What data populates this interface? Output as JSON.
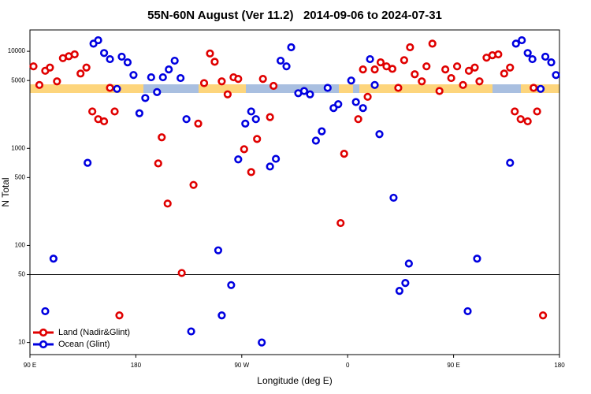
{
  "chart_data": {
    "type": "scatter",
    "title": "55N-60N August (Ver 11.2)   2014-09-06 to 2024-07-31",
    "xlabel": "Longitude (deg E)",
    "ylabel": "N Total",
    "xlim": [
      90,
      540
    ],
    "xticks": [
      {
        "value": 90,
        "label": "90 E"
      },
      {
        "value": 180,
        "label": "180"
      },
      {
        "value": 270,
        "label": "90 W"
      },
      {
        "value": 360,
        "label": "0"
      },
      {
        "value": 450,
        "label": "90 E"
      },
      {
        "value": 540,
        "label": "180"
      }
    ],
    "ylim": [
      7.5,
      16600
    ],
    "yscale": "log",
    "yticks": [
      10,
      50,
      100,
      500,
      1000,
      5000,
      10000
    ],
    "hline": 50,
    "legend": "lower left",
    "series": [
      {
        "name": "Land (Nadir&Glint)",
        "color": "#e00000",
        "x": [
          93,
          98,
          103,
          107,
          113,
          118,
          123,
          128,
          133,
          138,
          143,
          148,
          153,
          158,
          162,
          166,
          199,
          202,
          207,
          219,
          229,
          233,
          238,
          243,
          247,
          253,
          258,
          263,
          267,
          272,
          278,
          283,
          288,
          294,
          297,
          354,
          357,
          369,
          373,
          377,
          383,
          388,
          393,
          398,
          403,
          408,
          413,
          417,
          423,
          427,
          432,
          438,
          443,
          448,
          453,
          458,
          463,
          468,
          472,
          478,
          483,
          488,
          493,
          498,
          502,
          507,
          513,
          518,
          521,
          526
        ],
        "values": [
          7000,
          4500,
          6300,
          6800,
          4900,
          8500,
          8900,
          9300,
          5900,
          6800,
          2400,
          2000,
          1900,
          4200,
          2400,
          19,
          700,
          1300,
          270,
          52,
          420,
          1800,
          4700,
          9500,
          7800,
          4900,
          3600,
          5400,
          5200,
          980,
          570,
          1250,
          5200,
          2100,
          4400,
          170,
          880,
          2000,
          6500,
          3400,
          6500,
          7700,
          7000,
          6600,
          4200,
          8100,
          11000,
          5800,
          4900,
          7000,
          12000,
          3900,
          6500,
          5300,
          7000,
          4500,
          6300,
          6800,
          4900,
          8600,
          9100,
          9300,
          5900,
          6800,
          2400,
          2000,
          1900,
          4200,
          2400,
          19
        ]
      },
      {
        "name": "Ocean (Glint)",
        "color": "#0000e0",
        "x": [
          103,
          110,
          139,
          144,
          148,
          153,
          158,
          164,
          168,
          173,
          178,
          183,
          188,
          193,
          198,
          203,
          208,
          213,
          218,
          223,
          227,
          250,
          253,
          261,
          267,
          273,
          278,
          282,
          287,
          294,
          299,
          303,
          308,
          312,
          318,
          323,
          328,
          333,
          338,
          343,
          348,
          352,
          363,
          367,
          373,
          379,
          383,
          387,
          399,
          404,
          409,
          412,
          462,
          470,
          498,
          503,
          508,
          513,
          517,
          524,
          528,
          533,
          537
        ],
        "values": [
          21,
          73,
          710,
          12000,
          13000,
          9600,
          8300,
          4100,
          8800,
          7700,
          5700,
          2300,
          3300,
          5400,
          3800,
          5400,
          6500,
          8000,
          5300,
          2000,
          13,
          89,
          19,
          39,
          770,
          1800,
          2400,
          2000,
          10,
          650,
          780,
          8000,
          7000,
          11000,
          3700,
          3900,
          3600,
          1200,
          1500,
          4200,
          2600,
          2850,
          5000,
          3000,
          2600,
          8300,
          4500,
          1400,
          310,
          34,
          41,
          65,
          21,
          73,
          710,
          12000,
          13000,
          9600,
          8300,
          4100,
          8800,
          7700,
          5700
        ]
      }
    ]
  }
}
